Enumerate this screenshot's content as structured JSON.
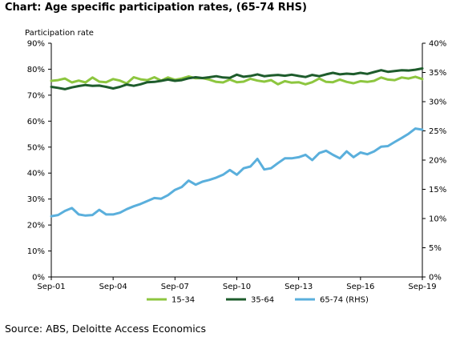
{
  "title": "Chart: Age specific participation rates, (65-74 RHS)",
  "source": "Source: ABS, Deloitte Access Economics",
  "chart_data": {
    "type": "line",
    "ylabel": "Participation rate",
    "left_axis": {
      "min": 0,
      "max": 90,
      "step": 10,
      "ticks": [
        "0%",
        "10%",
        "20%",
        "30%",
        "40%",
        "50%",
        "60%",
        "70%",
        "80%",
        "90%"
      ]
    },
    "right_axis": {
      "min": 0,
      "max": 40,
      "step": 5,
      "ticks": [
        "0%",
        "5%",
        "10%",
        "15%",
        "20%",
        "25%",
        "30%",
        "35%",
        "40%"
      ]
    },
    "x_start": 2001.67,
    "x_end": 2019.67,
    "x_ticks": [
      {
        "label": "Sep-01",
        "year": 2001.67
      },
      {
        "label": "Sep-04",
        "year": 2004.67
      },
      {
        "label": "Sep-07",
        "year": 2007.67
      },
      {
        "label": "Sep-10",
        "year": 2010.67
      },
      {
        "label": "Sep-13",
        "year": 2013.67
      },
      {
        "label": "Sep-16",
        "year": 2016.67
      },
      {
        "label": "Sep-19",
        "year": 2019.67
      }
    ],
    "legend_position": "bottom",
    "series": [
      {
        "name": "15-34",
        "color": "#8dc63f",
        "axis": "left",
        "points": [
          [
            2001.67,
            75.5
          ],
          [
            2002.0,
            75.8
          ],
          [
            2002.33,
            76.4
          ],
          [
            2002.67,
            74.9
          ],
          [
            2003.0,
            75.6
          ],
          [
            2003.33,
            74.9
          ],
          [
            2003.67,
            76.8
          ],
          [
            2004.0,
            75.2
          ],
          [
            2004.33,
            75.0
          ],
          [
            2004.67,
            76.2
          ],
          [
            2005.0,
            75.6
          ],
          [
            2005.33,
            74.5
          ],
          [
            2005.67,
            76.9
          ],
          [
            2006.0,
            76.1
          ],
          [
            2006.33,
            75.8
          ],
          [
            2006.67,
            76.9
          ],
          [
            2007.0,
            75.6
          ],
          [
            2007.33,
            76.8
          ],
          [
            2007.67,
            75.9
          ],
          [
            2008.0,
            76.4
          ],
          [
            2008.33,
            77.2
          ],
          [
            2008.67,
            76.5
          ],
          [
            2009.0,
            76.6
          ],
          [
            2009.33,
            76.0
          ],
          [
            2009.67,
            75.1
          ],
          [
            2010.0,
            74.9
          ],
          [
            2010.33,
            76.0
          ],
          [
            2010.67,
            75.0
          ],
          [
            2011.0,
            75.2
          ],
          [
            2011.33,
            76.3
          ],
          [
            2011.67,
            75.6
          ],
          [
            2012.0,
            75.2
          ],
          [
            2012.33,
            75.8
          ],
          [
            2012.67,
            74.2
          ],
          [
            2013.0,
            75.4
          ],
          [
            2013.33,
            74.8
          ],
          [
            2013.67,
            75.0
          ],
          [
            2014.0,
            74.2
          ],
          [
            2014.33,
            75.0
          ],
          [
            2014.67,
            76.4
          ],
          [
            2015.0,
            75.1
          ],
          [
            2015.33,
            75.0
          ],
          [
            2015.67,
            76.0
          ],
          [
            2016.0,
            75.1
          ],
          [
            2016.33,
            74.6
          ],
          [
            2016.67,
            75.4
          ],
          [
            2017.0,
            75.1
          ],
          [
            2017.33,
            75.5
          ],
          [
            2017.67,
            76.8
          ],
          [
            2018.0,
            76.0
          ],
          [
            2018.33,
            75.8
          ],
          [
            2018.67,
            76.8
          ],
          [
            2019.0,
            76.4
          ],
          [
            2019.33,
            77.1
          ],
          [
            2019.67,
            76.2
          ]
        ]
      },
      {
        "name": "35-64",
        "color": "#1e5c2c",
        "axis": "left",
        "points": [
          [
            2001.67,
            73.2
          ],
          [
            2002.0,
            72.8
          ],
          [
            2002.33,
            72.3
          ],
          [
            2002.67,
            73.0
          ],
          [
            2003.0,
            73.5
          ],
          [
            2003.33,
            73.9
          ],
          [
            2003.67,
            73.6
          ],
          [
            2004.0,
            73.7
          ],
          [
            2004.33,
            73.2
          ],
          [
            2004.67,
            72.6
          ],
          [
            2005.0,
            73.2
          ],
          [
            2005.33,
            74.1
          ],
          [
            2005.67,
            73.6
          ],
          [
            2006.0,
            74.2
          ],
          [
            2006.33,
            75.0
          ],
          [
            2006.67,
            75.1
          ],
          [
            2007.0,
            75.5
          ],
          [
            2007.33,
            76.0
          ],
          [
            2007.67,
            75.5
          ],
          [
            2008.0,
            75.8
          ],
          [
            2008.33,
            76.5
          ],
          [
            2008.67,
            76.9
          ],
          [
            2009.0,
            76.6
          ],
          [
            2009.33,
            76.9
          ],
          [
            2009.67,
            77.3
          ],
          [
            2010.0,
            76.8
          ],
          [
            2010.33,
            76.7
          ],
          [
            2010.67,
            77.9
          ],
          [
            2011.0,
            77.1
          ],
          [
            2011.33,
            77.4
          ],
          [
            2011.67,
            78.0
          ],
          [
            2012.0,
            77.3
          ],
          [
            2012.33,
            77.6
          ],
          [
            2012.67,
            77.8
          ],
          [
            2013.0,
            77.5
          ],
          [
            2013.33,
            77.9
          ],
          [
            2013.67,
            77.4
          ],
          [
            2014.0,
            77.0
          ],
          [
            2014.33,
            77.8
          ],
          [
            2014.67,
            77.3
          ],
          [
            2015.0,
            78.0
          ],
          [
            2015.33,
            78.6
          ],
          [
            2015.67,
            78.0
          ],
          [
            2016.0,
            78.3
          ],
          [
            2016.33,
            78.1
          ],
          [
            2016.67,
            78.6
          ],
          [
            2017.0,
            78.2
          ],
          [
            2017.33,
            78.9
          ],
          [
            2017.67,
            79.6
          ],
          [
            2018.0,
            79.0
          ],
          [
            2018.33,
            79.3
          ],
          [
            2018.67,
            79.6
          ],
          [
            2019.0,
            79.5
          ],
          [
            2019.33,
            79.8
          ],
          [
            2019.67,
            80.3
          ]
        ]
      },
      {
        "name": "65-74 (RHS)",
        "color": "#5aafdc",
        "axis": "right",
        "points": [
          [
            2001.67,
            10.4
          ],
          [
            2002.0,
            10.6
          ],
          [
            2002.33,
            11.3
          ],
          [
            2002.67,
            11.8
          ],
          [
            2003.0,
            10.7
          ],
          [
            2003.33,
            10.5
          ],
          [
            2003.67,
            10.6
          ],
          [
            2004.0,
            11.5
          ],
          [
            2004.33,
            10.7
          ],
          [
            2004.67,
            10.7
          ],
          [
            2005.0,
            11.0
          ],
          [
            2005.33,
            11.6
          ],
          [
            2005.67,
            12.1
          ],
          [
            2006.0,
            12.5
          ],
          [
            2006.33,
            13.0
          ],
          [
            2006.67,
            13.5
          ],
          [
            2007.0,
            13.4
          ],
          [
            2007.33,
            14.0
          ],
          [
            2007.67,
            14.9
          ],
          [
            2008.0,
            15.4
          ],
          [
            2008.33,
            16.5
          ],
          [
            2008.67,
            15.8
          ],
          [
            2009.0,
            16.3
          ],
          [
            2009.33,
            16.6
          ],
          [
            2009.67,
            17.0
          ],
          [
            2010.0,
            17.5
          ],
          [
            2010.33,
            18.3
          ],
          [
            2010.67,
            17.5
          ],
          [
            2011.0,
            18.6
          ],
          [
            2011.33,
            18.9
          ],
          [
            2011.67,
            20.2
          ],
          [
            2012.0,
            18.4
          ],
          [
            2012.33,
            18.6
          ],
          [
            2012.67,
            19.5
          ],
          [
            2013.0,
            20.3
          ],
          [
            2013.33,
            20.3
          ],
          [
            2013.67,
            20.5
          ],
          [
            2014.0,
            20.9
          ],
          [
            2014.33,
            20.0
          ],
          [
            2014.67,
            21.2
          ],
          [
            2015.0,
            21.6
          ],
          [
            2015.33,
            20.9
          ],
          [
            2015.67,
            20.3
          ],
          [
            2016.0,
            21.5
          ],
          [
            2016.33,
            20.5
          ],
          [
            2016.67,
            21.3
          ],
          [
            2017.0,
            21.0
          ],
          [
            2017.33,
            21.5
          ],
          [
            2017.67,
            22.3
          ],
          [
            2018.0,
            22.4
          ],
          [
            2018.33,
            23.1
          ],
          [
            2018.67,
            23.8
          ],
          [
            2019.0,
            24.5
          ],
          [
            2019.33,
            25.4
          ],
          [
            2019.67,
            25.2
          ]
        ]
      }
    ]
  }
}
